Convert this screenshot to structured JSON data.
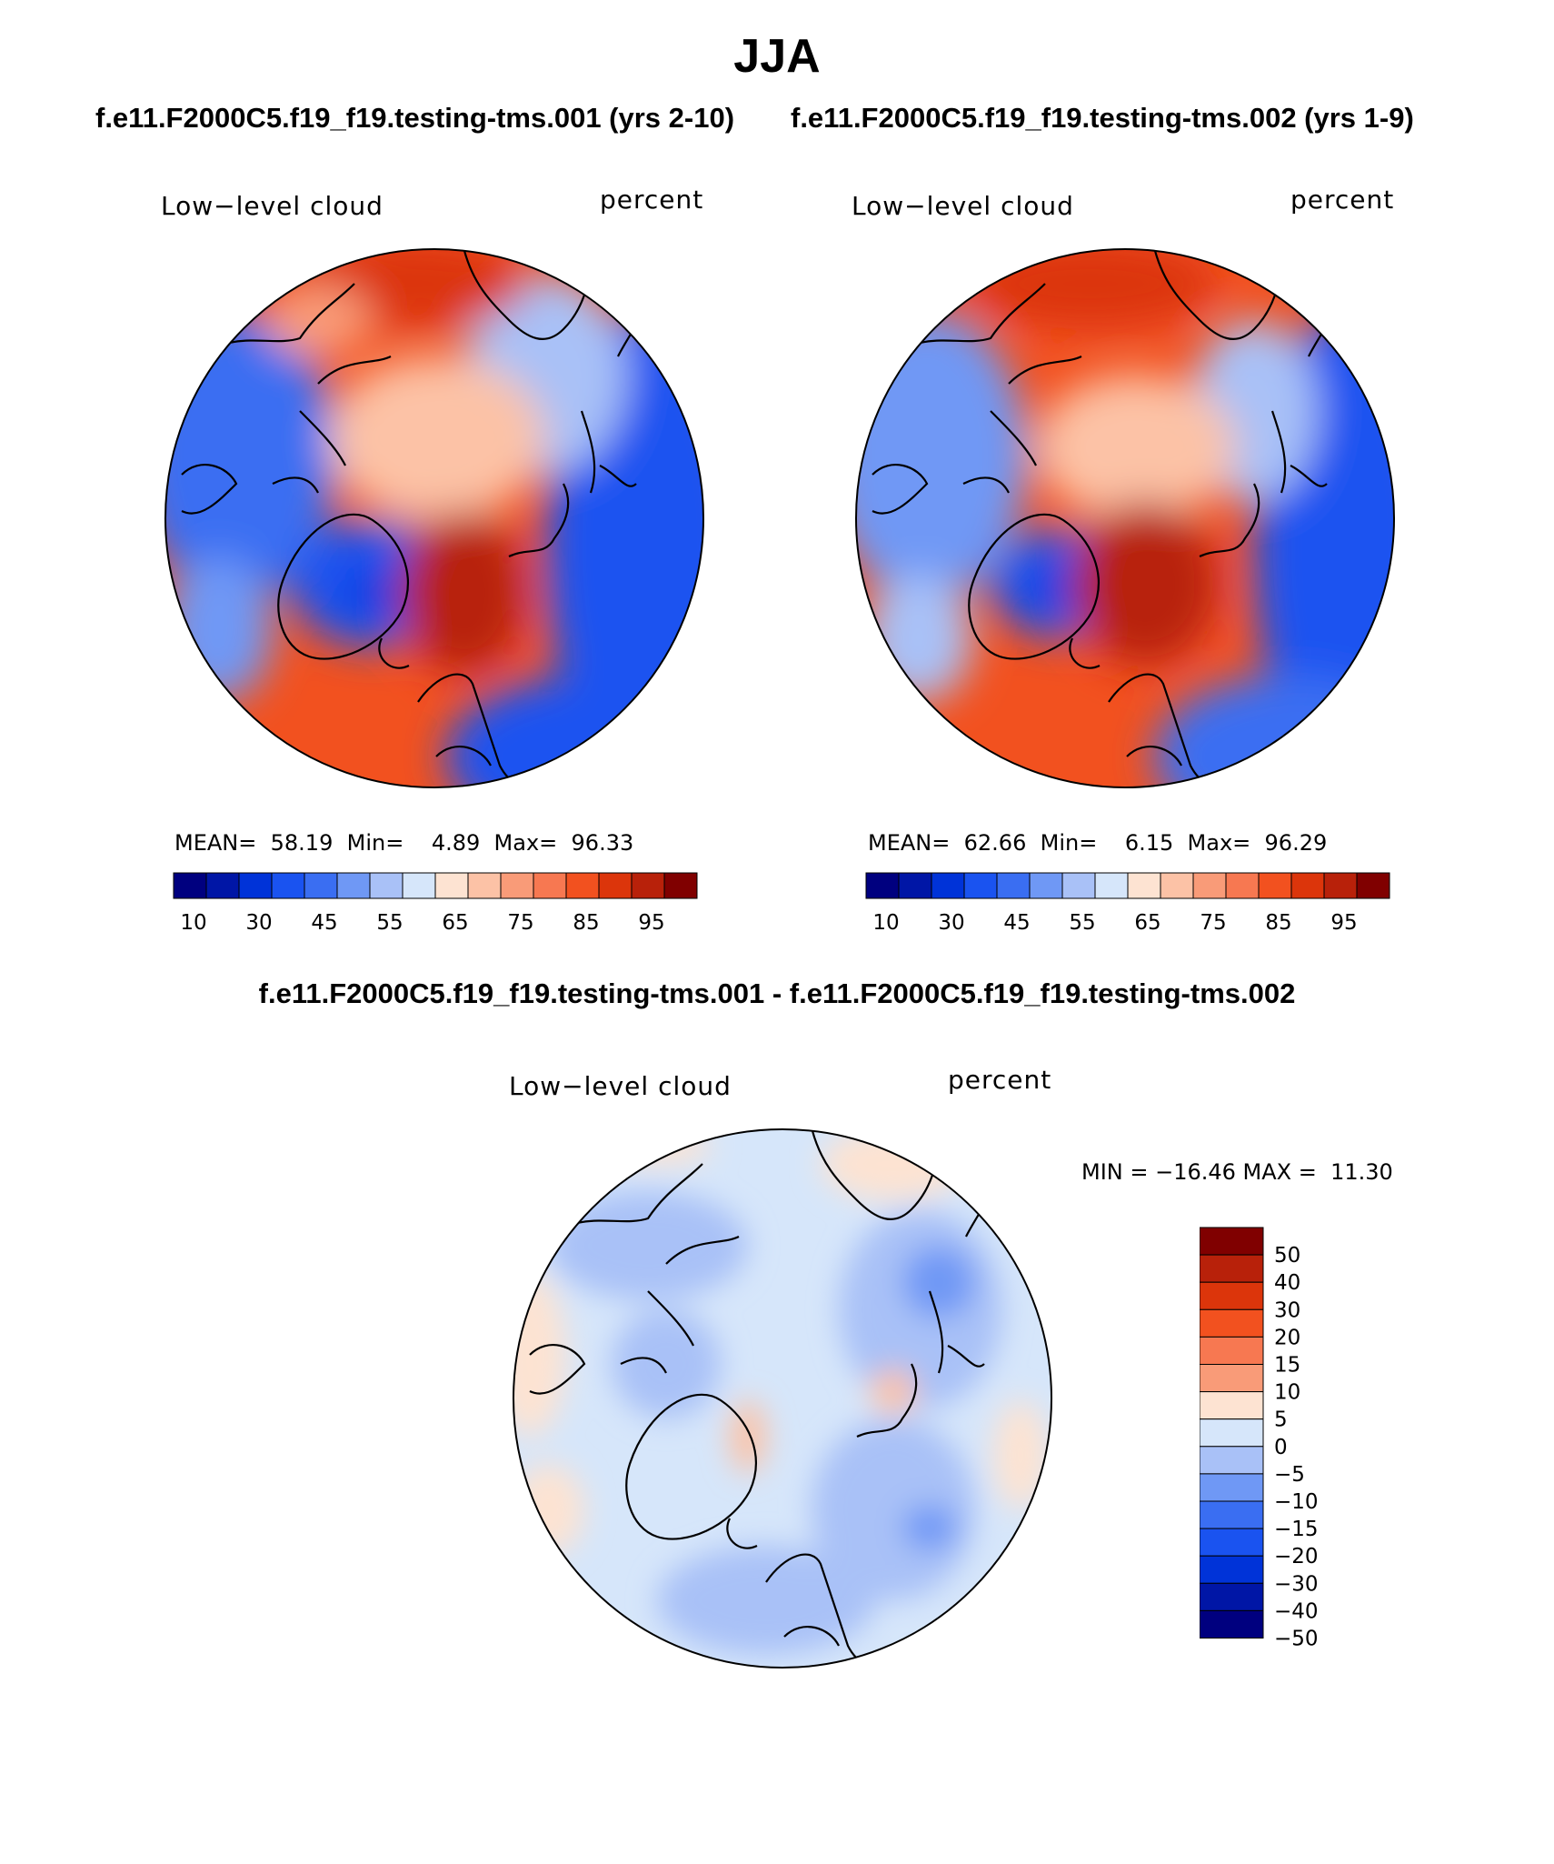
{
  "title": "JJA",
  "panels": [
    {
      "case_title": "f.e11.F2000C5.f19_f19.testing-tms.001 (yrs 2-10)",
      "variable": "Low−level cloud",
      "units": "percent",
      "stats": {
        "mean_label": "MEAN=",
        "mean": "58.19",
        "min_label": "Min=",
        "min": "4.89",
        "max_label": "Max=",
        "max": "96.33"
      }
    },
    {
      "case_title": "f.e11.F2000C5.f19_f19.testing-tms.002 (yrs 1-9)",
      "variable": "Low−level cloud",
      "units": "percent",
      "stats": {
        "mean_label": "MEAN=",
        "mean": "62.66",
        "min_label": "Min=",
        "min": "6.15",
        "max_label": "Max=",
        "max": "96.29"
      }
    }
  ],
  "difference": {
    "title": "f.e11.F2000C5.f19_f19.testing-tms.001 - f.e11.F2000C5.f19_f19.testing-tms.002",
    "variable": "Low−level cloud",
    "units": "percent",
    "minmax_text": "MIN = −16.46 MAX =  11.30"
  },
  "colorbar_main": {
    "colors": [
      "#00007f",
      "#0016a6",
      "#0033d8",
      "#1a53f0",
      "#3a6ef2",
      "#6f98f5",
      "#a9c1f7",
      "#d6e6fa",
      "#fde3d2",
      "#fcc2a6",
      "#f99b78",
      "#f77851",
      "#f2511f",
      "#dc350b",
      "#b8210a",
      "#800000"
    ],
    "tick_labels": [
      "10",
      "30",
      "45",
      "55",
      "65",
      "75",
      "85",
      "95"
    ]
  },
  "colorbar_diff": {
    "colors": [
      "#800000",
      "#b8210a",
      "#dc350b",
      "#f2511f",
      "#f77851",
      "#f99b78",
      "#fde3d2",
      "#d6e6fa",
      "#a9c1f7",
      "#6f98f5",
      "#3a6ef2",
      "#1a53f0",
      "#0033d8",
      "#0016a6",
      "#00007f"
    ],
    "tick_labels": [
      "50",
      "40",
      "30",
      "20",
      "15",
      "10",
      "5",
      "0",
      "−5",
      "−10",
      "−15",
      "−20",
      "−30",
      "−40",
      "−50"
    ]
  }
}
